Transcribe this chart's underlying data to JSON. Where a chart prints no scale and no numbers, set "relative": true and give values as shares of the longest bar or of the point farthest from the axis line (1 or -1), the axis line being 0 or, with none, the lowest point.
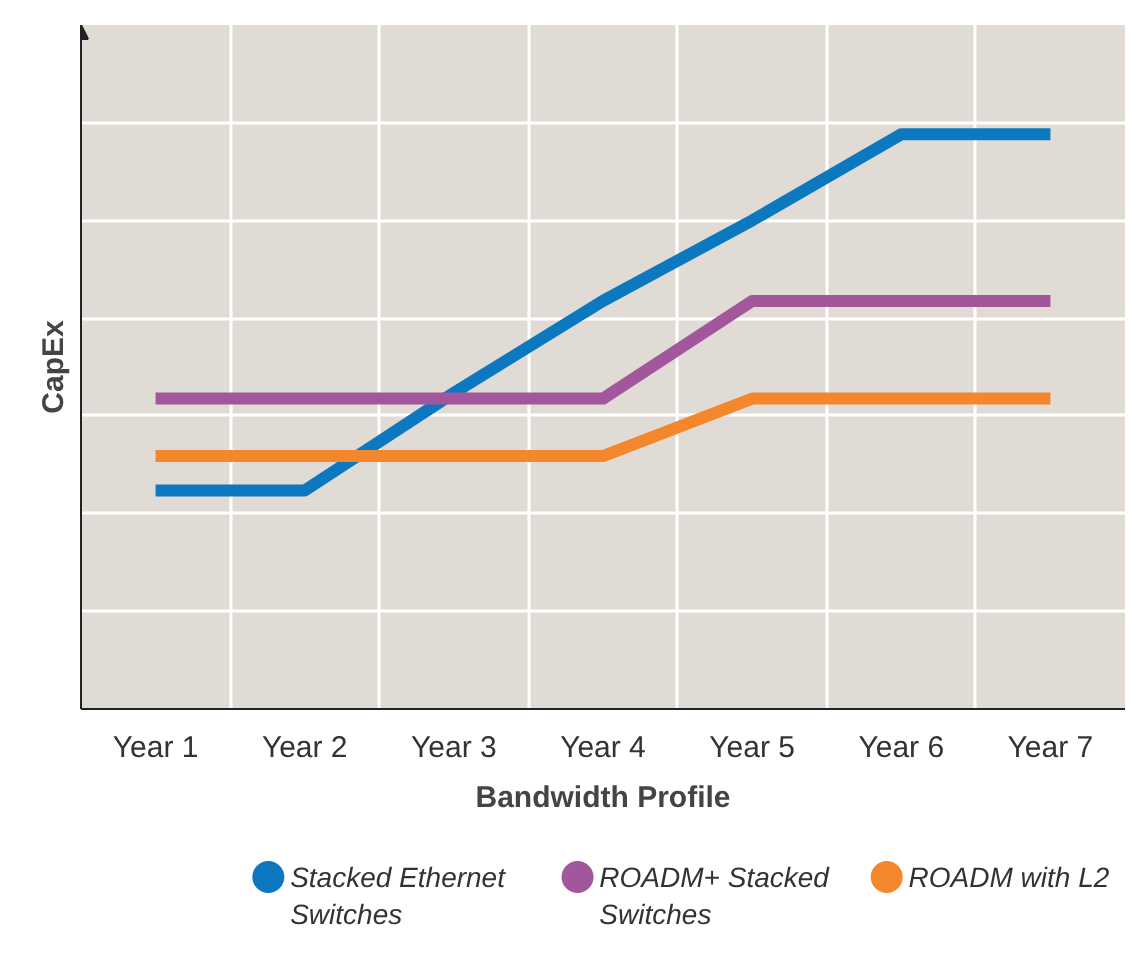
{
  "chart_data": {
    "type": "line",
    "relative": true,
    "xlabel": "Bandwidth Profile",
    "ylabel": "CapEx",
    "categories": [
      "Year 1",
      "Year 2",
      "Year 3",
      "Year 4",
      "Year 5",
      "Year 6",
      "Year 7"
    ],
    "series": [
      {
        "name": "Stacked Ethernet Switches",
        "color": "#0b78c0",
        "values": [
          0.38,
          0.38,
          0.55,
          0.71,
          0.85,
          1,
          1
        ]
      },
      {
        "name": "ROADM+ Stacked Switches",
        "color": "#a2579d",
        "values": [
          0.54,
          0.54,
          0.54,
          0.54,
          0.71,
          0.71,
          0.71
        ]
      },
      {
        "name": "ROADM with L2",
        "color": "#f4872c",
        "values": [
          0.44,
          0.44,
          0.44,
          0.44,
          0.54,
          0.54,
          0.54
        ]
      }
    ],
    "grid": true,
    "legend": "bottom",
    "marker": "none",
    "line_style": "solid"
  }
}
